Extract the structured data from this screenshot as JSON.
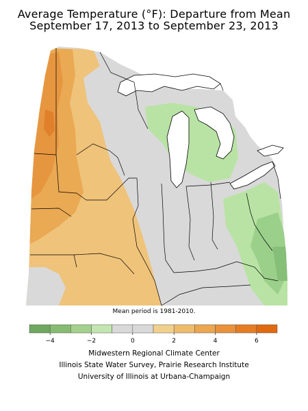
{
  "title": {
    "line1": "Average Temperature (°F): Departure from Mean",
    "line2": "September 17, 2013 to September 23, 2013"
  },
  "map": {
    "region": "Midwest / Great Lakes, USA",
    "colors": {
      "water": "#ffffff",
      "neutral": "#d9d9d9",
      "warm_1": "#f0c97e",
      "warm_2": "#e9ae55",
      "warm_3": "#e8923a",
      "cool_1": "#b8e2a3",
      "cool_2": "#9ad08a",
      "border": "#000000"
    }
  },
  "period_note": "Mean period is 1981-2010.",
  "legend": {
    "ticks": [
      "−4",
      "−2",
      "0",
      "2",
      "4",
      "6"
    ],
    "colors": [
      "#6fa860",
      "#87bb72",
      "#a4d08e",
      "#c3e6b1",
      "#d9d9d9",
      "#d9d9d9",
      "#f0d08c",
      "#eebd6b",
      "#eba650",
      "#e9923b",
      "#e67d23",
      "#e06a10"
    ]
  },
  "credits": {
    "line1": "Midwestern Regional Climate Center",
    "line2": "Illinois State Water Survey, Prairie Research Institute",
    "line3": "University of Illinois at Urbana-Champaign"
  }
}
